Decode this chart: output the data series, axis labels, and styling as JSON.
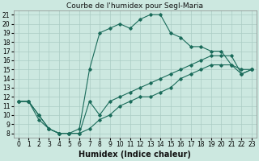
{
  "title": "Courbe de l'humidex pour Segl-Maria",
  "xlabel": "Humidex (Indice chaleur)",
  "background_color": "#cce8e0",
  "grid_color": "#aaccC4",
  "line_color": "#1a6b5a",
  "xlim": [
    -0.5,
    23.5
  ],
  "ylim": [
    7.5,
    21.5
  ],
  "xticks": [
    0,
    1,
    2,
    3,
    4,
    5,
    6,
    7,
    8,
    9,
    10,
    11,
    12,
    13,
    14,
    15,
    16,
    17,
    18,
    19,
    20,
    21,
    22,
    23
  ],
  "yticks": [
    8,
    9,
    10,
    11,
    12,
    13,
    14,
    15,
    16,
    17,
    18,
    19,
    20,
    21
  ],
  "series": [
    {
      "x": [
        0,
        1,
        2,
        3,
        4,
        5,
        6,
        7,
        8,
        9,
        10,
        11,
        12,
        13,
        14,
        15,
        16,
        17,
        18,
        19,
        20,
        21,
        22,
        23
      ],
      "y": [
        11.5,
        11.5,
        9.5,
        8.5,
        8.0,
        8.0,
        8.5,
        15.0,
        19.0,
        19.5,
        20.0,
        19.5,
        20.5,
        21.0,
        21.0,
        19.0,
        18.5,
        17.5,
        17.5,
        17.0,
        17.0,
        15.5,
        15.0,
        15.0
      ]
    },
    {
      "x": [
        0,
        1,
        2,
        3,
        4,
        5,
        6,
        7,
        8,
        9,
        10,
        11,
        12,
        13,
        14,
        15,
        16,
        17,
        18,
        19,
        20,
        21,
        22,
        23
      ],
      "y": [
        11.5,
        11.5,
        10.0,
        8.5,
        8.0,
        8.0,
        8.0,
        8.5,
        9.5,
        10.0,
        11.0,
        11.5,
        12.0,
        12.0,
        12.5,
        13.0,
        14.0,
        14.5,
        15.0,
        15.5,
        15.5,
        15.5,
        14.5,
        15.0
      ]
    },
    {
      "x": [
        0,
        1,
        2,
        3,
        4,
        5,
        6,
        7,
        8,
        9,
        10,
        11,
        12,
        13,
        14,
        15,
        16,
        17,
        18,
        19,
        20,
        21,
        22,
        23
      ],
      "y": [
        11.5,
        11.5,
        10.0,
        8.5,
        8.0,
        8.0,
        8.0,
        11.5,
        10.0,
        11.5,
        12.0,
        12.5,
        13.0,
        13.5,
        14.0,
        14.5,
        15.0,
        15.5,
        16.0,
        16.5,
        16.5,
        16.5,
        14.5,
        15.0
      ]
    }
  ],
  "title_fontsize": 6.5,
  "tick_fontsize": 5.5,
  "xlabel_fontsize": 7
}
